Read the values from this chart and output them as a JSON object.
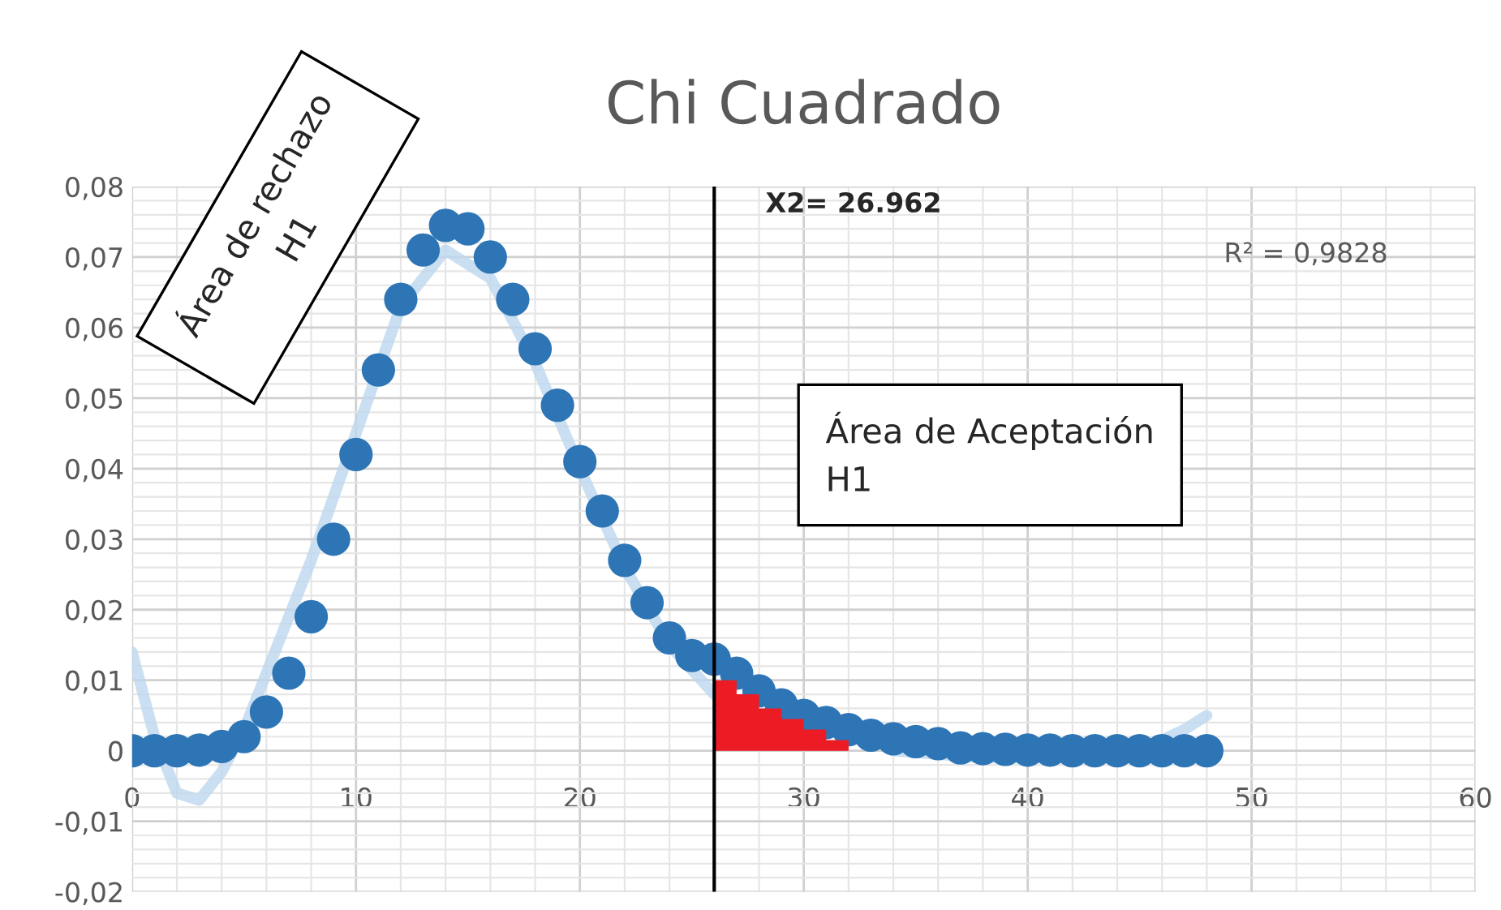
{
  "chart_data": {
    "type": "scatter",
    "title": "Chi Cuadrado",
    "xlim": [
      0,
      60
    ],
    "xticks": [
      0,
      10,
      20,
      30,
      40,
      50,
      60
    ],
    "ylim": [
      -0.02,
      0.08
    ],
    "yticks": [
      {
        "value": -0.02,
        "label": "-0,02"
      },
      {
        "value": -0.01,
        "label": "-0,01"
      },
      {
        "value": 0,
        "label": "0"
      },
      {
        "value": 0.01,
        "label": "0,01"
      },
      {
        "value": 0.02,
        "label": "0,02"
      },
      {
        "value": 0.03,
        "label": "0,03"
      },
      {
        "value": 0.04,
        "label": "0,04"
      },
      {
        "value": 0.05,
        "label": "0,05"
      },
      {
        "value": 0.06,
        "label": "0,06"
      },
      {
        "value": 0.07,
        "label": "0,07"
      },
      {
        "value": 0.08,
        "label": "0,08"
      }
    ],
    "grid": true,
    "marker": "circle",
    "series": [
      {
        "type": "line",
        "marker": "none",
        "color": "#bdd7ee",
        "x": [
          0,
          1,
          2,
          3,
          4,
          5,
          6,
          8,
          10,
          12,
          14,
          16,
          18,
          20,
          22,
          24,
          26,
          28,
          30,
          34,
          38,
          42,
          45,
          47,
          48
        ],
        "values": [
          0.014,
          0.002,
          -0.006,
          -0.007,
          -0.003,
          0.003,
          0.011,
          0.027,
          0.045,
          0.063,
          0.071,
          0.067,
          0.055,
          0.04,
          0.026,
          0.015,
          0.008,
          null,
          null,
          0.0,
          -0.001,
          -0.001,
          0.0,
          0.003,
          0.005
        ]
      },
      {
        "type": "area",
        "marker": "none",
        "color": "#ed1c24",
        "x": [
          26,
          27,
          28,
          29,
          30,
          31,
          32
        ],
        "values": [
          0.01,
          0.008,
          0.006,
          0.0045,
          0.003,
          0.0015,
          0.0015
        ]
      },
      {
        "color": "#2e75b6",
        "x": [
          0,
          1,
          2,
          3,
          4,
          5,
          6,
          7,
          8,
          9,
          10,
          11,
          12,
          13,
          14,
          15,
          16,
          17,
          18,
          19,
          20,
          21,
          22,
          23,
          24,
          25,
          26,
          27,
          28,
          29,
          30,
          31,
          32,
          33,
          34,
          35,
          36,
          37,
          38,
          39,
          40,
          41,
          42,
          43,
          44,
          45,
          46,
          47,
          48
        ],
        "values": [
          0,
          0,
          0,
          0.0001,
          0.0006,
          0.002,
          0.0055,
          0.011,
          0.019,
          0.03,
          0.042,
          0.054,
          0.064,
          0.071,
          0.0745,
          0.074,
          0.07,
          0.064,
          0.057,
          0.049,
          0.041,
          0.034,
          0.027,
          0.021,
          0.016,
          0.0135,
          0.013,
          0.011,
          0.0085,
          0.0065,
          0.005,
          0.004,
          0.003,
          0.0022,
          0.0017,
          0.0013,
          0.001,
          0.0004,
          0.0003,
          0.0002,
          0.0001,
          0.0001,
          0,
          0,
          0,
          0,
          0,
          0,
          0
        ]
      }
    ],
    "ref_lines": [
      {
        "axis": "x",
        "value": 26,
        "color": "#000000",
        "line_style": "solid"
      }
    ],
    "annotations": [
      "Área de rechazo\nH1",
      "Área de Aceptación\nH1",
      "R² = 0,9828",
      "X2= 26.962"
    ]
  }
}
